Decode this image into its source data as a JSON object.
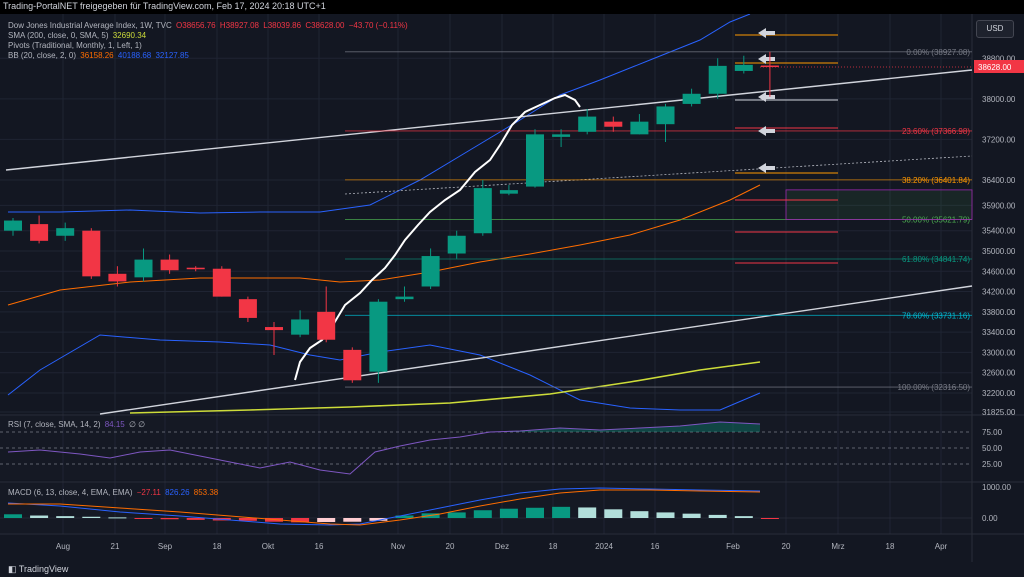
{
  "banner": "Trading-PortalNET freigegeben für TradingView.com, Feb 17, 2024 20:18 UTC+1",
  "legend": {
    "title": "Dow Jones Industrial Average Index, 1W, TVC",
    "ohlc": {
      "o": "O38656.76",
      "h": "H38927.08",
      "l": "L38039.86",
      "c": "C38628.00",
      "chg": "−43.70 (−0.11%)"
    },
    "sma": {
      "label": "SMA (200, close, 0, SMA, 5)",
      "value": "32690.34"
    },
    "pivots": {
      "label": "Pivots (Traditional, Monthly, 1, Left, 1)"
    },
    "bb": {
      "label": "BB (20, close, 2, 0)",
      "basis": "36158.26",
      "upper": "40188.68",
      "lower": "32127.85"
    },
    "rsi": {
      "label": "RSI (7, close, SMA, 14, 2)",
      "value": "84.15",
      "extra": "∅ ∅"
    },
    "macd": {
      "label": "MACD (6, 13, close, 4, EMA, EMA)",
      "hist": "−27.11",
      "macd": "826.26",
      "signal": "853.38"
    }
  },
  "currency_button": "USD",
  "footer": {
    "logo": "TradingView"
  },
  "chart_data": {
    "type": "candlestick",
    "symbol": "Dow Jones Industrial Average Index",
    "timeframe": "1W",
    "last_price": "38628.00",
    "price_axis": {
      "min": 31825,
      "max": 39300,
      "ticks": [
        "38800.00",
        "38000.00",
        "37200.00",
        "36400.00",
        "35900.00",
        "35400.00",
        "35000.00",
        "34600.00",
        "34200.00",
        "33800.00",
        "33400.00",
        "33000.00",
        "32600.00",
        "32200.00",
        "31825.00"
      ]
    },
    "x_axis": {
      "labels": [
        "Aug",
        "21",
        "Sep",
        "18",
        "Okt",
        "16",
        "Nov",
        "20",
        "Dez",
        "18",
        "2024",
        "16",
        "Feb",
        "20",
        "Mrz",
        "18",
        "Apr"
      ]
    },
    "candles": [
      {
        "o": 35400,
        "h": 35650,
        "l": 35300,
        "c": 35600
      },
      {
        "o": 35530,
        "h": 35700,
        "l": 35150,
        "c": 35200
      },
      {
        "o": 35300,
        "h": 35560,
        "l": 35200,
        "c": 35450
      },
      {
        "o": 35400,
        "h": 35450,
        "l": 34450,
        "c": 34500
      },
      {
        "o": 34550,
        "h": 34700,
        "l": 34300,
        "c": 34400
      },
      {
        "o": 34480,
        "h": 35050,
        "l": 34400,
        "c": 34830
      },
      {
        "o": 34830,
        "h": 34930,
        "l": 34550,
        "c": 34620
      },
      {
        "o": 34670,
        "h": 34700,
        "l": 34600,
        "c": 34640
      },
      {
        "o": 34650,
        "h": 34700,
        "l": 34100,
        "c": 34100
      },
      {
        "o": 34050,
        "h": 34100,
        "l": 33600,
        "c": 33680
      },
      {
        "o": 33500,
        "h": 33600,
        "l": 32950,
        "c": 33440
      },
      {
        "o": 33350,
        "h": 33830,
        "l": 33300,
        "c": 33650
      },
      {
        "o": 33800,
        "h": 34300,
        "l": 33200,
        "c": 33250
      },
      {
        "o": 33050,
        "h": 33100,
        "l": 32400,
        "c": 32450
      },
      {
        "o": 32620,
        "h": 34050,
        "l": 32400,
        "c": 34000
      },
      {
        "o": 34050,
        "h": 34300,
        "l": 34000,
        "c": 34100
      },
      {
        "o": 34300,
        "h": 35050,
        "l": 34250,
        "c": 34900
      },
      {
        "o": 34950,
        "h": 35400,
        "l": 34850,
        "c": 35300
      },
      {
        "o": 35350,
        "h": 36400,
        "l": 35300,
        "c": 36240
      },
      {
        "o": 36130,
        "h": 36300,
        "l": 36100,
        "c": 36200
      },
      {
        "o": 36270,
        "h": 37400,
        "l": 36250,
        "c": 37300
      },
      {
        "o": 37250,
        "h": 37400,
        "l": 37050,
        "c": 37300
      },
      {
        "o": 37350,
        "h": 37800,
        "l": 37300,
        "c": 37650
      },
      {
        "o": 37550,
        "h": 37650,
        "l": 37350,
        "c": 37450
      },
      {
        "o": 37300,
        "h": 37700,
        "l": 37300,
        "c": 37550
      },
      {
        "o": 37500,
        "h": 37900,
        "l": 37150,
        "c": 37850
      },
      {
        "o": 37900,
        "h": 38200,
        "l": 37850,
        "c": 38100
      },
      {
        "o": 38100,
        "h": 38800,
        "l": 38000,
        "c": 38650
      },
      {
        "o": 38550,
        "h": 38850,
        "l": 38500,
        "c": 38670
      },
      {
        "o": 38656.76,
        "h": 38927.08,
        "l": 38039.86,
        "c": 38628
      }
    ],
    "fibonacci": [
      {
        "label": "0.00% (38927.08)",
        "value": 38927.08,
        "color": "#787b86"
      },
      {
        "label": "23.60% (37366.98)",
        "value": 37366.98,
        "color": "#f23645"
      },
      {
        "label": "38.20% (36401.84)",
        "value": 36401.84,
        "color": "#ff9800"
      },
      {
        "label": "50.00% (35621.79)",
        "value": 35621.79,
        "color": "#4caf50"
      },
      {
        "label": "61.80% (34841.74)",
        "value": 34841.74,
        "color": "#089981"
      },
      {
        "label": "78.60% (33731.16)",
        "value": 33731.16,
        "color": "#00bcd4"
      },
      {
        "label": "100.00% (32316.50)",
        "value": 32316.5,
        "color": "#787b86"
      }
    ],
    "sma200": {
      "value": 32690.34
    },
    "bb_last": {
      "basis": 36158.26,
      "upper": 40188.68,
      "lower": 32127.85
    },
    "rsi": {
      "levels": [
        "75.00",
        "50.00",
        "25.00"
      ],
      "last": 84.15
    },
    "macd": {
      "ticks": [
        "1000.00",
        "0.00"
      ],
      "hist_last": -27.11,
      "macd_last": 826.26,
      "signal_last": 853.38
    },
    "colors": {
      "up": "#089981",
      "down": "#f23645",
      "bb": "#2962ff",
      "basis": "#ff6d00",
      "sma": "#cddc39",
      "rsi": "#7e57c2",
      "macd": "#2962ff",
      "signal": "#ff6d00"
    }
  }
}
